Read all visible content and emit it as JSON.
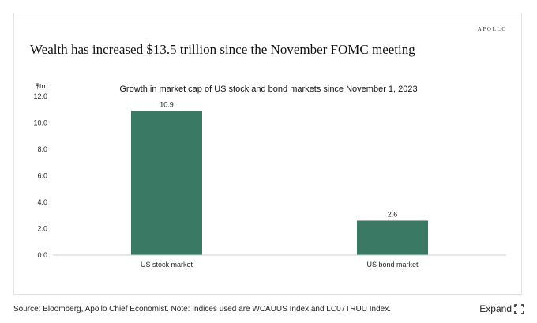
{
  "brand": "APOLLO",
  "headline": "Wealth has increased $13.5 trillion since the November FOMC meeting",
  "footer": {
    "source": "Source: Bloomberg, Apollo Chief Economist. Note: Indices used are WCAUUS Index and LC07TRUU Index.",
    "expand_label": "Expand"
  },
  "chart_data": {
    "type": "bar",
    "title": "Growth in market cap of US stock and bond markets since November 1, 2023",
    "ylabel": "$trn",
    "xlabel": "",
    "categories": [
      "US stock market",
      "US bond market"
    ],
    "values": [
      10.9,
      2.6
    ],
    "data_labels": [
      "10.9",
      "2.6"
    ],
    "yticks": [
      "12.0",
      "10.0",
      "8.0",
      "6.0",
      "4.0",
      "2.0",
      "0.0"
    ],
    "ylim": [
      0,
      12
    ],
    "grid": false,
    "legend": "none",
    "bar_color": "#3a7a64"
  }
}
